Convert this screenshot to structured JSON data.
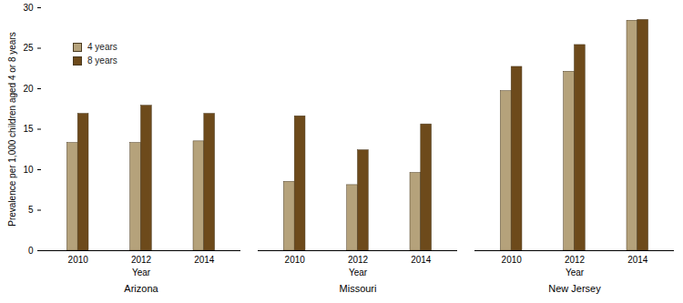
{
  "chart_data": {
    "type": "bar",
    "y_label": "Prevalence per 1,000 children aged 4 or 8 years",
    "x_label": "Year",
    "groups": [
      "Arizona",
      "Missouri",
      "New Jersey"
    ],
    "categories": [
      "2010",
      "2012",
      "2014"
    ],
    "series": [
      {
        "name": "4 years",
        "color": "#b5a27b",
        "values": [
          [
            13.3,
            13.3,
            13.5
          ],
          [
            8.5,
            8.1,
            9.6
          ],
          [
            19.7,
            22.1,
            28.4
          ]
        ]
      },
      {
        "name": "8 years",
        "color": "#6d4a1b",
        "values": [
          [
            16.9,
            17.9,
            16.9
          ],
          [
            16.6,
            12.4,
            15.6
          ],
          [
            22.7,
            25.4,
            28.5
          ]
        ]
      }
    ],
    "ylim": [
      0,
      30
    ],
    "yticks": [
      0,
      5,
      10,
      15,
      20,
      25,
      30
    ],
    "legend": "top-left"
  }
}
